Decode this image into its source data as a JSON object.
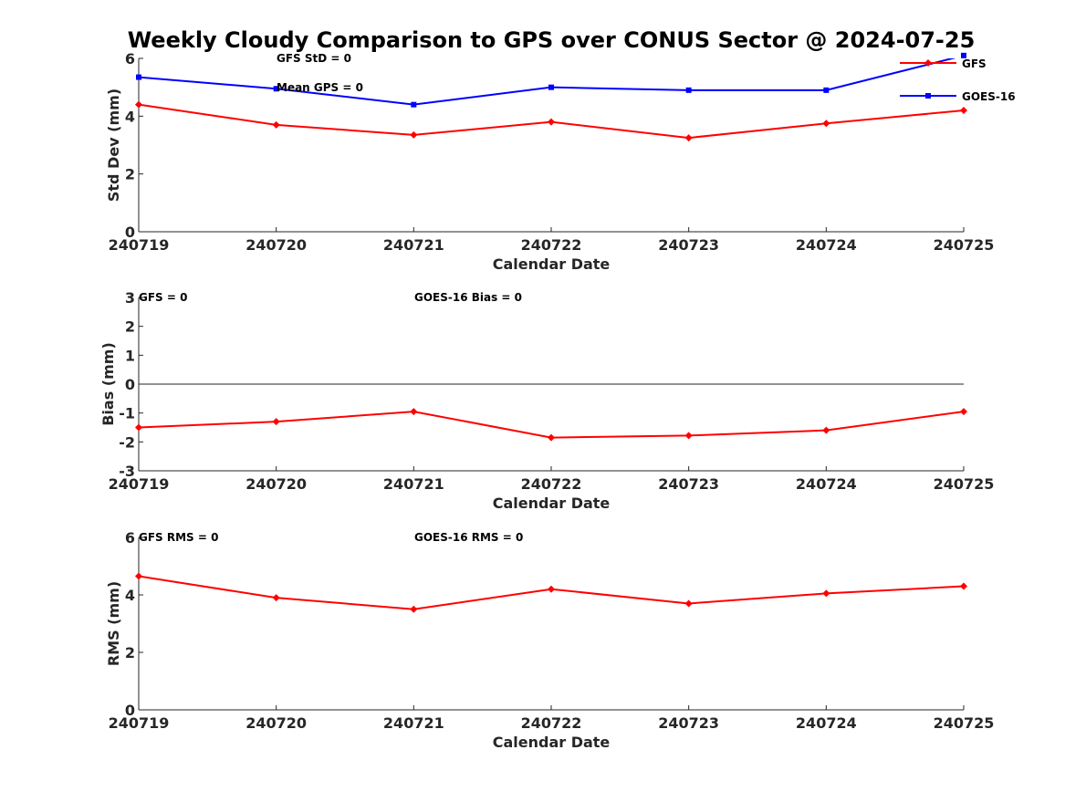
{
  "chart_data": {
    "type": "line",
    "title": "Weekly Cloudy Comparison to GPS over CONUS Sector @ 2024-07-25",
    "categories": [
      "240719",
      "240720",
      "240721",
      "240722",
      "240723",
      "240724",
      "240725"
    ],
    "colors": {
      "GFS": "#ff0000",
      "GOES-16": "#0000ff",
      "zero_line": "#262626"
    },
    "legend": {
      "placement": "top-right",
      "entries": [
        "GFS",
        "GOES-16"
      ]
    },
    "panels": [
      {
        "id": "std",
        "ylabel": "Std Dev (mm)",
        "xlabel": "Calendar Date",
        "ylim": [
          0,
          6
        ],
        "yticks": [
          0,
          2,
          4,
          6
        ],
        "annotations": [
          "GFS StD = 0",
          "Mean GPS = 0"
        ],
        "zero_line": false,
        "series": [
          {
            "name": "GFS",
            "marker": "diamond",
            "values": [
              4.4,
              3.7,
              3.35,
              3.8,
              3.25,
              3.75,
              4.2
            ]
          },
          {
            "name": "GOES-16",
            "marker": "square",
            "values": [
              5.35,
              4.95,
              4.4,
              5.0,
              4.9,
              4.9,
              6.1
            ]
          }
        ]
      },
      {
        "id": "bias",
        "ylabel": "Bias (mm)",
        "xlabel": "Calendar Date",
        "ylim": [
          -3,
          3
        ],
        "yticks": [
          -3,
          -2,
          -1,
          0,
          1,
          2,
          3
        ],
        "annotations": [
          "GFS = 0",
          "GOES-16 Bias  = 0"
        ],
        "zero_line": true,
        "series": [
          {
            "name": "GFS",
            "marker": "diamond",
            "values": [
              -1.5,
              -1.3,
              -0.95,
              -1.85,
              -1.78,
              -1.6,
              -0.95
            ]
          }
        ]
      },
      {
        "id": "rms",
        "ylabel": "RMS (mm)",
        "xlabel": "Calendar Date",
        "ylim": [
          0,
          6
        ],
        "yticks": [
          0,
          2,
          4,
          6
        ],
        "annotations": [
          "GFS RMS = 0",
          "GOES-16 RMS = 0"
        ],
        "zero_line": false,
        "series": [
          {
            "name": "GFS",
            "marker": "diamond",
            "values": [
              4.65,
              3.9,
              3.5,
              4.2,
              3.7,
              4.05,
              4.3
            ]
          }
        ]
      }
    ]
  }
}
